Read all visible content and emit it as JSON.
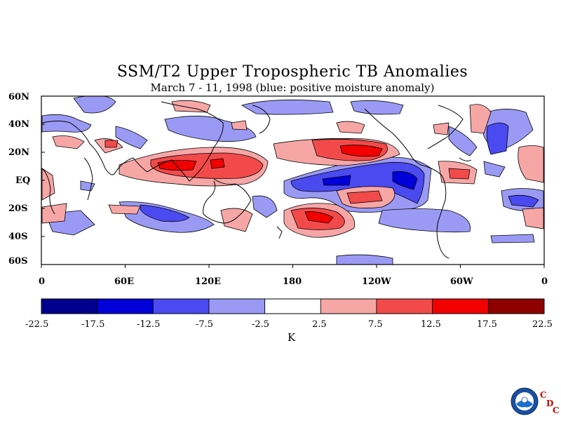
{
  "title": "SSM/T2 Upper Tropospheric TB Anomalies",
  "subtitle": "March 7 - 11, 1998 (blue: positive moisture anomaly)",
  "lat_labels": [
    "60N",
    "40N",
    "20N",
    "EQ",
    "20S",
    "40S",
    "60S"
  ],
  "lon_labels": [
    "0",
    "60E",
    "120E",
    "180",
    "120W",
    "60W",
    "0"
  ],
  "colorbar": {
    "ticks": [
      "-22.5",
      "-17.5",
      "-12.5",
      "-7.5",
      "-2.5",
      "2.5",
      "7.5",
      "12.5",
      "17.5",
      "22.5"
    ],
    "colors": [
      "#00008f",
      "#0000d8",
      "#4a4af0",
      "#9a9af5",
      "#ffffff",
      "#f7a6a6",
      "#f24a4a",
      "#f20000",
      "#8f0000"
    ],
    "unit": "K"
  },
  "logo": {
    "name": "noaa-logo",
    "cdc_letters": [
      "C",
      "D",
      "C"
    ]
  }
}
